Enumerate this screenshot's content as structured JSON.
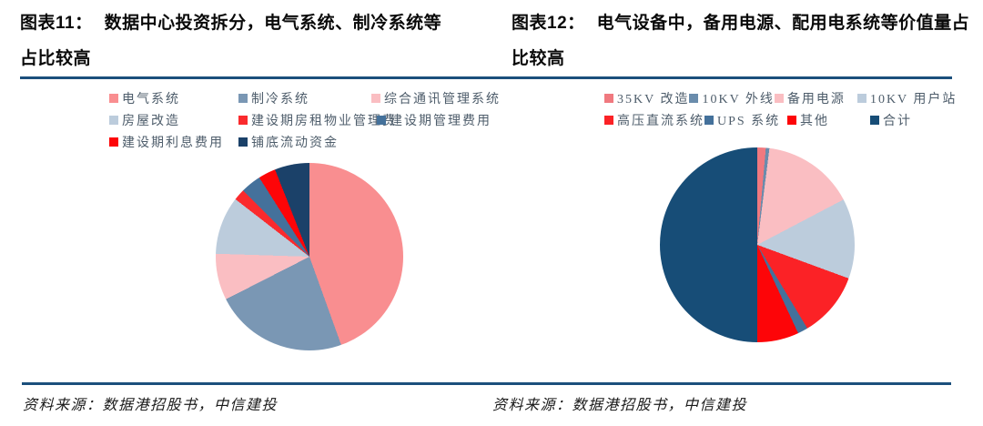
{
  "page": {
    "background": "#ffffff",
    "rule_color": "#1B4F7C"
  },
  "chart_data": [
    {
      "type": "pie",
      "figure_label": "图表11：",
      "title": "数据中心投资拆分，电气系统、制冷系统等占比较高",
      "title_line1": "数据中心投资拆分，电气系统、制冷系统等",
      "title_line2": "占比较高",
      "legend_position": "top",
      "start_angle_deg": 0,
      "direction": "clockwise",
      "labels": [
        "电气系统",
        "制冷系统",
        "综合通讯管理系统",
        "房屋改造",
        "建设期房租物业管理费",
        "建设期管理费用",
        "建设期利息费用",
        "铺底流动资金"
      ],
      "values_pct": [
        44.5,
        23,
        8,
        10,
        2,
        3.5,
        3,
        6
      ],
      "colors": [
        "#F98E90",
        "#7A97B4",
        "#FABEC2",
        "#BCCCDC",
        "#FA2A2D",
        "#44719B",
        "#FD0508",
        "#1B4169"
      ],
      "legend_rows": [
        [
          0,
          1,
          2
        ],
        [
          3,
          4,
          5
        ],
        [
          6,
          7
        ]
      ],
      "source": "资料来源：数据港招股书，中信建投"
    },
    {
      "type": "pie",
      "figure_label": "图表12：",
      "title": "电气设备中，备用电源、配用电系统等价值量占比较高",
      "title_line1": "电气设备中，备用电源、配用电系统等价值量占",
      "title_line2": "比较高",
      "legend_position": "top",
      "start_angle_deg": 0,
      "direction": "clockwise",
      "labels": [
        "35KV 改造",
        "10KV 外线",
        "备用电源",
        "10KV 用户站",
        "高压直流系统",
        "UPS 系统",
        "其他",
        "合计"
      ],
      "values_pct": [
        1.4,
        0.6,
        15.3,
        13.3,
        10.8,
        1.7,
        6.9,
        50
      ],
      "colors": [
        "#F0797F",
        "#6A8CAC",
        "#FABEC2",
        "#BCCCDC",
        "#FB2226",
        "#44719B",
        "#FD0508",
        "#174D77"
      ],
      "legend_rows": [
        [
          0,
          1,
          2,
          3
        ],
        [
          4,
          5,
          6,
          7
        ]
      ],
      "source": "资料来源：数据港招股书，中信建投"
    }
  ]
}
